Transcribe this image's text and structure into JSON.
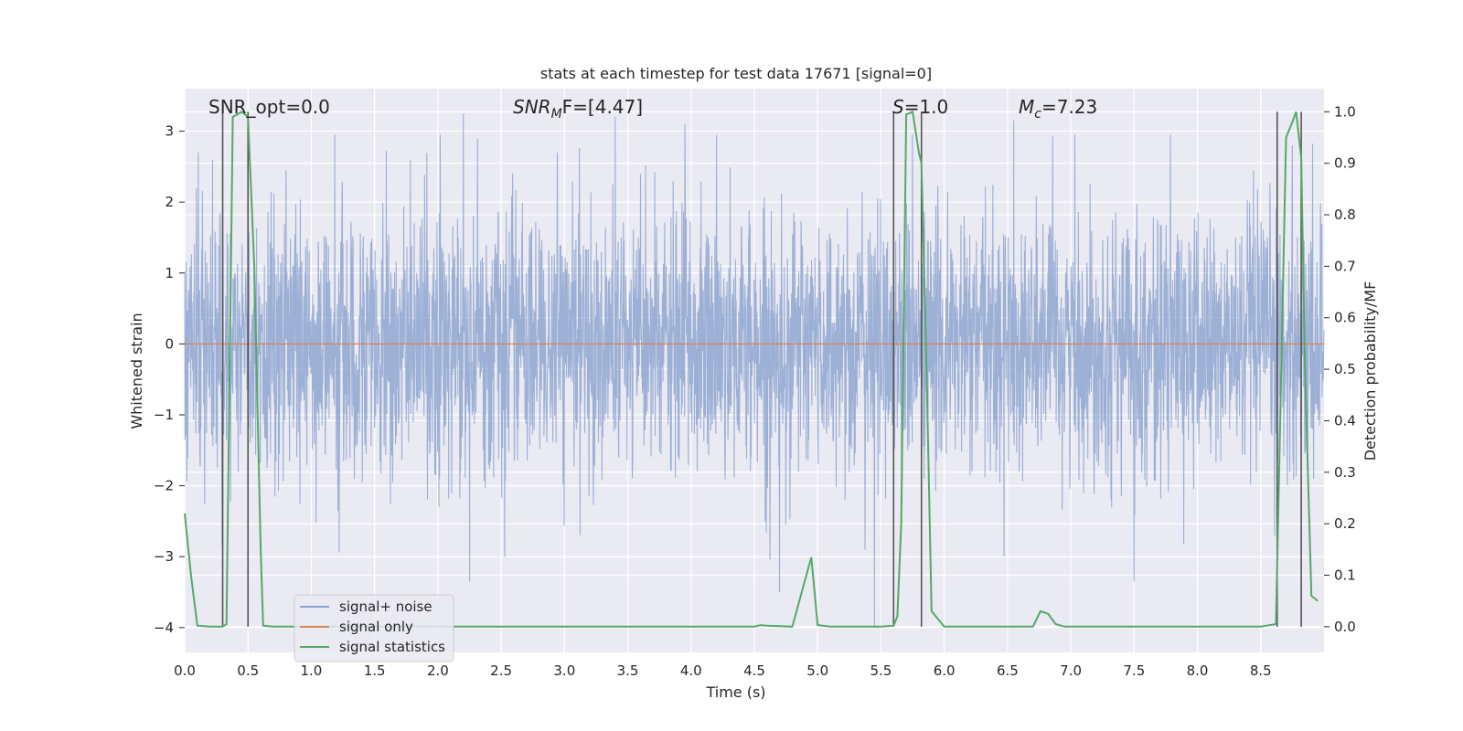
{
  "chart_data": {
    "type": "line",
    "title": "stats at each timestep for test data 17671 [signal=0]",
    "xlabel": "Time (s)",
    "ylabel": "Whitened strain",
    "y2label": "Detection probability/MF",
    "xlim": [
      0,
      9
    ],
    "ylim": [
      -4.35,
      3.6
    ],
    "y2lim": [
      -0.05,
      1.045
    ],
    "xticks": [
      "0.0",
      "0.5",
      "1.0",
      "1.5",
      "2.0",
      "2.5",
      "3.0",
      "3.5",
      "4.0",
      "4.5",
      "5.0",
      "5.5",
      "6.0",
      "6.5",
      "7.0",
      "7.5",
      "8.0",
      "8.5"
    ],
    "yticks": [
      "−4",
      "−3",
      "−2",
      "−1",
      "0",
      "1",
      "2",
      "3"
    ],
    "y2ticks": [
      "0.0",
      "0.1",
      "0.2",
      "0.3",
      "0.4",
      "0.5",
      "0.6",
      "0.7",
      "0.8",
      "0.9",
      "1.0"
    ],
    "grid": true,
    "legend_position": "lower-left",
    "annotations": {
      "snr_opt": "SNR_opt=0.0",
      "snr_mf_main": "SNR",
      "snr_mf_sub": "M",
      "snr_mf_rest": "F=[4.47]",
      "s_main": "S",
      "s_rest": "=1.0",
      "mc_main": "M",
      "mc_sub": "c",
      "mc_rest": "=7.23"
    },
    "series": [
      {
        "name": "signal+ noise",
        "color": "#8ea4d0",
        "description_range": [
          -4.0,
          3.25
        ],
        "peaks": [
          {
            "x": 0.22,
            "y": 2.6
          },
          {
            "x": 2.2,
            "y": 3.25
          },
          {
            "x": 2.25,
            "y": -3.35
          },
          {
            "x": 3.4,
            "y": 3.2
          },
          {
            "x": 3.95,
            "y": 3.1
          },
          {
            "x": 4.2,
            "y": 2.95
          },
          {
            "x": 4.7,
            "y": -3.5
          },
          {
            "x": 5.45,
            "y": -4.0
          },
          {
            "x": 6.55,
            "y": 3.15
          },
          {
            "x": 7.5,
            "y": -3.35
          },
          {
            "x": 8.75,
            "y": 2.8
          }
        ]
      },
      {
        "name": "signal only",
        "color": "#dd8452",
        "x": [
          0,
          9
        ],
        "y": [
          0,
          0
        ]
      },
      {
        "name": "signal statistics",
        "color": "#55a868",
        "axis": "right",
        "x": [
          0,
          0.05,
          0.1,
          0.2,
          0.3,
          0.33,
          0.38,
          0.45,
          0.5,
          0.55,
          0.6,
          0.62,
          0.7,
          1.0,
          2.0,
          3.0,
          4.0,
          4.5,
          4.55,
          4.6,
          4.8,
          4.95,
          5.0,
          5.1,
          5.5,
          5.6,
          5.63,
          5.66,
          5.7,
          5.75,
          5.8,
          5.82,
          5.86,
          5.9,
          6.0,
          6.5,
          6.7,
          6.76,
          6.82,
          6.88,
          6.95,
          7.05,
          7.5,
          8.0,
          8.5,
          8.62,
          8.65,
          8.7,
          8.75,
          8.78,
          8.82,
          8.85,
          8.9,
          8.95
        ],
        "y": [
          0.22,
          0.1,
          0.002,
          0.0,
          0.0,
          0.005,
          0.99,
          1.0,
          0.99,
          0.7,
          0.15,
          0.002,
          0.0,
          0.0,
          0.0,
          0.0,
          0.0,
          0.0,
          0.003,
          0.002,
          0.0,
          0.135,
          0.003,
          0.0,
          0.0,
          0.002,
          0.02,
          0.2,
          0.995,
          1.0,
          0.92,
          0.9,
          0.5,
          0.03,
          0.0,
          0.0,
          0.0,
          0.03,
          0.025,
          0.005,
          0.0,
          0.0,
          0.0,
          0.0,
          0.0,
          0.005,
          0.35,
          0.95,
          0.98,
          1.0,
          0.91,
          0.5,
          0.06,
          0.05
        ]
      }
    ],
    "vlines": [
      0.3,
      0.5,
      5.6,
      5.82,
      8.63,
      8.82
    ]
  }
}
